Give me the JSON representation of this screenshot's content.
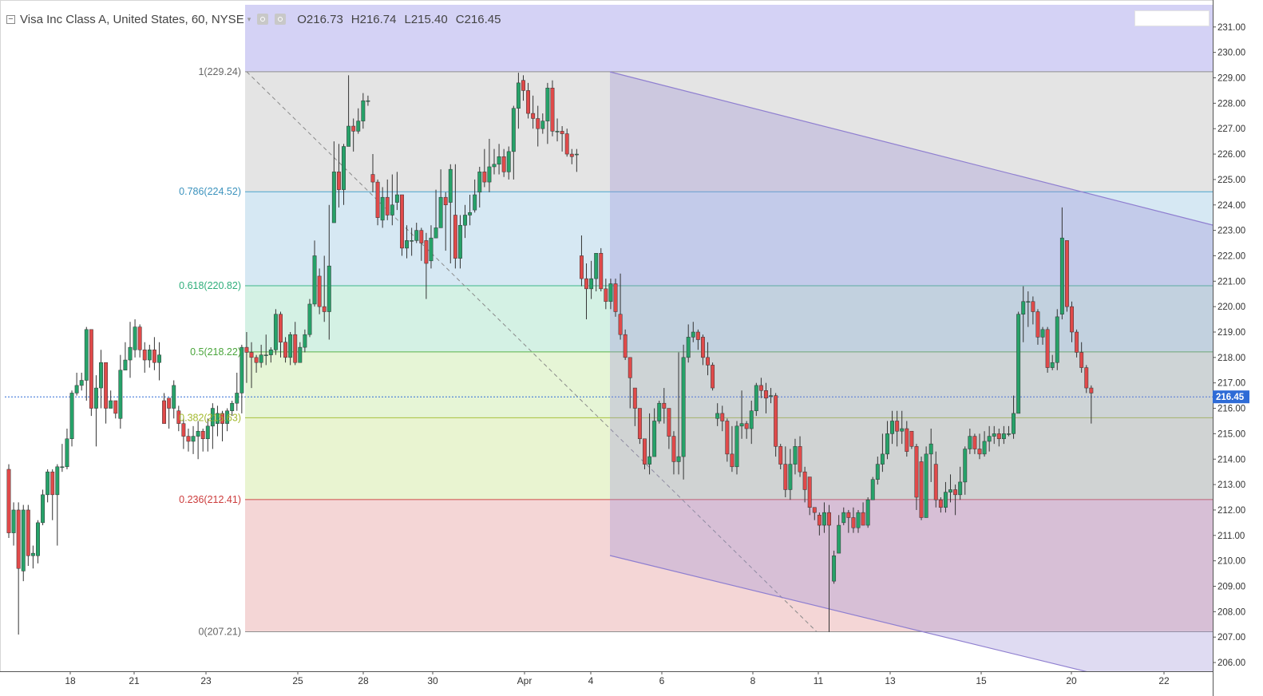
{
  "header": {
    "symbol_text": "Visa Inc Class A, United States, 60, NYSE",
    "open": "O216.73",
    "high": "H216.74",
    "low": "L215.40",
    "close": "C216.45"
  },
  "colors": {
    "up": "#26a269",
    "down": "#e04a4a",
    "channel_fill": "#9b8fd6",
    "top_band": "#d4d2f5"
  },
  "chart_data": {
    "type": "candlestick",
    "title": "Visa Inc Class A, United States, 60, NYSE",
    "ylim": [
      205.7,
      231.5
    ],
    "y_ticks": [
      "206.00",
      "207.00",
      "208.00",
      "209.00",
      "210.00",
      "211.00",
      "212.00",
      "213.00",
      "214.00",
      "215.00",
      "216.00",
      "217.00",
      "218.00",
      "219.00",
      "220.00",
      "221.00",
      "222.00",
      "223.00",
      "224.00",
      "225.00",
      "226.00",
      "227.00",
      "228.00",
      "229.00",
      "230.00",
      "231.00"
    ],
    "x_ticks": [
      "18",
      "21",
      "23",
      "25",
      "28",
      "30",
      "Apr",
      "4",
      "6",
      "8",
      "11",
      "13",
      "15",
      "20",
      "22"
    ],
    "last_price": "216.45",
    "fibonacci": [
      {
        "level": "1",
        "price": 229.24,
        "label": "1(229.24)"
      },
      {
        "level": "0.786",
        "price": 224.52,
        "label": "0.786(224.52)"
      },
      {
        "level": "0.618",
        "price": 220.82,
        "label": "0.618(220.82)"
      },
      {
        "level": "0.5",
        "price": 218.22,
        "label": "0.5(218.22)"
      },
      {
        "level": "0.382",
        "price": 215.63,
        "label": "0.382(215.63)"
      },
      {
        "level": "0.236",
        "price": 212.41,
        "label": "0.236(212.41)"
      },
      {
        "level": "0",
        "price": 207.21,
        "label": "0(207.21)"
      }
    ],
    "candles": [
      [
        213.6,
        211.1,
        213.8,
        210.9
      ],
      [
        211.1,
        212.0,
        212.3,
        210.6
      ],
      [
        212.0,
        209.7,
        212.3,
        207.1
      ],
      [
        209.6,
        212.0,
        212.2,
        209.2
      ],
      [
        212.0,
        210.2,
        212.2,
        209.8
      ],
      [
        210.2,
        210.3,
        210.6,
        209.7
      ],
      [
        210.2,
        211.5,
        211.6,
        209.9
      ],
      [
        211.5,
        212.6,
        212.8,
        211.4
      ],
      [
        212.6,
        213.5,
        213.6,
        212.3
      ],
      [
        213.5,
        212.6,
        213.6,
        211.6
      ],
      [
        212.6,
        213.7,
        213.8,
        210.6
      ],
      [
        213.7,
        213.7,
        214.6,
        213.5
      ],
      [
        213.7,
        214.8,
        215.2,
        213.6
      ],
      [
        214.8,
        216.6,
        216.7,
        214.5
      ],
      [
        216.6,
        216.9,
        217.4,
        216.5
      ],
      [
        216.9,
        217.1,
        217.4,
        216.7
      ],
      [
        217.1,
        219.1,
        219.2,
        216.3
      ],
      [
        219.1,
        216.0,
        216.4,
        215.7
      ],
      [
        216.0,
        216.8,
        217.3,
        214.5
      ],
      [
        216.8,
        217.8,
        218.3,
        216.0
      ],
      [
        217.8,
        216.0,
        216.2,
        215.4
      ],
      [
        216.0,
        216.3,
        216.7,
        216.0
      ],
      [
        216.3,
        215.8,
        216.0,
        215.6
      ],
      [
        215.6,
        217.5,
        218.1,
        215.2
      ],
      [
        217.5,
        217.9,
        218.6,
        217.5
      ],
      [
        217.9,
        218.4,
        219.4,
        217.2
      ],
      [
        218.3,
        219.2,
        219.5,
        218.0
      ],
      [
        219.2,
        218.3,
        219.3,
        218.0
      ],
      [
        218.3,
        217.9,
        218.6,
        217.4
      ],
      [
        217.9,
        218.3,
        218.5,
        217.6
      ],
      [
        218.3,
        217.8,
        218.8,
        217.5
      ],
      [
        217.8,
        218.1,
        218.6,
        217.1
      ],
      [
        216.3,
        215.4,
        216.6,
        215.4
      ],
      [
        216.4,
        216.0,
        216.4,
        215.2
      ],
      [
        216.0,
        216.9,
        217.1,
        215.6
      ],
      [
        215.9,
        215.4,
        216.1,
        215.1
      ],
      [
        215.4,
        214.9,
        215.6,
        214.4
      ],
      [
        214.9,
        214.7,
        215.2,
        214.3
      ],
      [
        214.7,
        214.9,
        215.3,
        214.2
      ],
      [
        214.9,
        215.1,
        215.5,
        214.0
      ],
      [
        215.1,
        214.8,
        215.2,
        214.3
      ],
      [
        214.8,
        215.3,
        215.6,
        214.3
      ],
      [
        215.3,
        216.0,
        216.2,
        214.4
      ],
      [
        215.4,
        215.8,
        216.1,
        214.9
      ],
      [
        215.8,
        215.4,
        215.9,
        214.7
      ],
      [
        215.4,
        215.9,
        216.0,
        215.1
      ],
      [
        215.9,
        216.2,
        216.3,
        215.7
      ],
      [
        216.2,
        216.6,
        217.4,
        215.9
      ],
      [
        216.6,
        218.4,
        218.5,
        215.8
      ],
      [
        218.4,
        218.2,
        219.0,
        217.0
      ],
      [
        218.2,
        218.0,
        218.6,
        216.8
      ],
      [
        218.0,
        217.8,
        218.1,
        217.4
      ],
      [
        217.8,
        218.1,
        218.5,
        217.6
      ],
      [
        218.1,
        218.1,
        218.9,
        217.7
      ],
      [
        218.1,
        218.3,
        218.4,
        217.8
      ],
      [
        218.3,
        219.7,
        219.9,
        218.1
      ],
      [
        219.7,
        218.6,
        219.8,
        218.0
      ],
      [
        218.6,
        218.0,
        218.8,
        217.8
      ],
      [
        218.0,
        218.9,
        219.0,
        217.7
      ],
      [
        218.9,
        217.8,
        219.4,
        217.7
      ],
      [
        217.8,
        218.4,
        218.6,
        217.8
      ],
      [
        218.4,
        218.9,
        219.1,
        218.2
      ],
      [
        218.9,
        220.1,
        220.3,
        218.8
      ],
      [
        220.1,
        222.0,
        222.6,
        220.0
      ],
      [
        221.2,
        220.0,
        221.5,
        219.7
      ],
      [
        220.0,
        219.8,
        222.0,
        219.4
      ],
      [
        219.8,
        221.6,
        224.0,
        218.7
      ],
      [
        223.3,
        225.3,
        226.5,
        223.3
      ],
      [
        225.3,
        224.6,
        226.4,
        223.9
      ],
      [
        224.6,
        226.3,
        226.4,
        224.0
      ],
      [
        226.3,
        227.1,
        229.1,
        226.7
      ],
      [
        227.1,
        226.9,
        227.4,
        226.1
      ],
      [
        226.9,
        227.3,
        227.8,
        226.8
      ],
      [
        227.3,
        228.1,
        228.4,
        227.0
      ],
      [
        228.1,
        228.1,
        228.3,
        227.9
      ],
      [
        225.2,
        224.9,
        226.0,
        224.5
      ],
      [
        224.9,
        223.5,
        225.0,
        223.2
      ],
      [
        223.4,
        224.3,
        224.7,
        223.1
      ],
      [
        224.3,
        223.6,
        225.0,
        223.4
      ],
      [
        223.6,
        224.0,
        225.2,
        223.2
      ],
      [
        224.1,
        224.4,
        225.3,
        223.8
      ],
      [
        224.4,
        222.3,
        224.4,
        222.0
      ],
      [
        222.3,
        222.6,
        223.2,
        221.9
      ],
      [
        222.6,
        222.6,
        223.1,
        222.0
      ],
      [
        222.6,
        223.0,
        223.3,
        222.5
      ],
      [
        223.0,
        222.5,
        223.1,
        221.8
      ],
      [
        222.6,
        221.7,
        222.9,
        220.3
      ],
      [
        221.8,
        222.7,
        223.2,
        221.5
      ],
      [
        222.7,
        223.1,
        224.6,
        222.9
      ],
      [
        223.1,
        224.3,
        225.4,
        223.1
      ],
      [
        224.3,
        224.0,
        224.5,
        222.2
      ],
      [
        224.1,
        225.4,
        225.6,
        221.7
      ],
      [
        223.6,
        221.9,
        225.6,
        221.5
      ],
      [
        221.9,
        223.2,
        223.6,
        221.5
      ],
      [
        223.2,
        223.6,
        224.0,
        222.7
      ],
      [
        223.6,
        223.7,
        224.4,
        223.2
      ],
      [
        223.8,
        224.4,
        225.0,
        223.7
      ],
      [
        224.5,
        225.3,
        225.5,
        223.9
      ],
      [
        225.3,
        224.9,
        226.2,
        224.7
      ],
      [
        224.9,
        225.5,
        226.6,
        224.5
      ],
      [
        225.5,
        225.6,
        226.2,
        225.2
      ],
      [
        225.6,
        225.9,
        226.4,
        225.2
      ],
      [
        225.9,
        225.3,
        226.2,
        225.1
      ],
      [
        225.3,
        226.1,
        226.3,
        225.0
      ],
      [
        226.1,
        227.8,
        227.9,
        225.0
      ],
      [
        227.8,
        228.8,
        229.2,
        227.0
      ],
      [
        228.9,
        228.5,
        229.1,
        228.1
      ],
      [
        228.5,
        227.6,
        228.8,
        227.4
      ],
      [
        227.6,
        227.4,
        228.3,
        227.0
      ],
      [
        227.4,
        227.0,
        227.9,
        226.3
      ],
      [
        227.0,
        227.3,
        227.6,
        226.8
      ],
      [
        227.3,
        228.6,
        228.8,
        226.4
      ],
      [
        228.6,
        226.9,
        228.9,
        226.7
      ],
      [
        226.9,
        226.9,
        227.4,
        226.5
      ],
      [
        226.9,
        226.8,
        227.1,
        226.1
      ],
      [
        226.8,
        226.0,
        227.0,
        225.9
      ],
      [
        226.0,
        225.9,
        226.2,
        225.6
      ],
      [
        226.0,
        226.0,
        226.2,
        225.3
      ],
      [
        222.0,
        221.1,
        222.8,
        220.8
      ],
      [
        221.1,
        220.7,
        221.7,
        219.5
      ],
      [
        220.7,
        221.1,
        221.8,
        220.3
      ],
      [
        221.1,
        222.1,
        222.1,
        220.6
      ],
      [
        222.1,
        220.7,
        222.3,
        220.6
      ],
      [
        220.7,
        220.2,
        221.1,
        219.9
      ],
      [
        220.2,
        220.9,
        221.1,
        219.9
      ],
      [
        220.9,
        219.8,
        221.1,
        219.6
      ],
      [
        219.7,
        218.9,
        221.3,
        218.7
      ],
      [
        218.9,
        218.0,
        219.1,
        217.9
      ],
      [
        218.0,
        217.2,
        218.0,
        216.0
      ],
      [
        216.8,
        216.0,
        216.7,
        215.3
      ],
      [
        216.0,
        214.8,
        216.0,
        214.6
      ],
      [
        214.8,
        213.8,
        214.8,
        213.6
      ],
      [
        213.8,
        214.1,
        215.8,
        213.4
      ],
      [
        214.1,
        215.5,
        216.0,
        214.3
      ],
      [
        215.5,
        216.2,
        216.3,
        215.4
      ],
      [
        216.2,
        216.0,
        216.8,
        215.4
      ],
      [
        216.0,
        214.9,
        215.1,
        214.4
      ],
      [
        214.9,
        213.9,
        215.1,
        213.4
      ],
      [
        213.9,
        214.1,
        218.2,
        213.4
      ],
      [
        214.1,
        218.0,
        218.5,
        213.2
      ],
      [
        218.0,
        218.8,
        219.3,
        217.8
      ],
      [
        218.8,
        219.0,
        219.4,
        218.6
      ],
      [
        219.0,
        218.7,
        219.1,
        218.3
      ],
      [
        218.8,
        218.0,
        218.9,
        217.7
      ],
      [
        218.0,
        217.7,
        218.6,
        217.3
      ],
      [
        217.7,
        216.8,
        217.8,
        216.7
      ],
      [
        215.6,
        215.8,
        216.2,
        215.3
      ],
      [
        215.8,
        215.5,
        216.1,
        215.1
      ],
      [
        215.5,
        214.2,
        215.6,
        213.9
      ],
      [
        214.2,
        213.7,
        215.3,
        213.5
      ],
      [
        213.7,
        215.3,
        215.5,
        213.4
      ],
      [
        215.3,
        215.4,
        216.7,
        214.8
      ],
      [
        215.4,
        215.2,
        215.5,
        214.8
      ],
      [
        215.2,
        215.9,
        216.3,
        214.6
      ],
      [
        215.9,
        216.9,
        217.0,
        215.7
      ],
      [
        216.9,
        216.7,
        217.2,
        216.4
      ],
      [
        216.7,
        216.4,
        217.0,
        215.8
      ],
      [
        216.5,
        216.5,
        216.8,
        216.2
      ],
      [
        216.5,
        214.5,
        216.6,
        214.1
      ],
      [
        214.5,
        213.8,
        214.6,
        213.6
      ],
      [
        213.8,
        212.8,
        214.5,
        212.5
      ],
      [
        212.8,
        213.8,
        214.4,
        212.4
      ],
      [
        213.8,
        214.5,
        214.8,
        213.4
      ],
      [
        214.5,
        213.5,
        214.9,
        213.3
      ],
      [
        213.5,
        212.8,
        213.7,
        212.3
      ],
      [
        213.3,
        212.1,
        213.2,
        211.8
      ],
      [
        212.1,
        211.9,
        212.0,
        211.6
      ],
      [
        211.8,
        211.4,
        211.9,
        211.0
      ],
      [
        211.4,
        211.9,
        212.3,
        211.1
      ],
      [
        211.9,
        211.4,
        212.2,
        207.2
      ],
      [
        209.2,
        210.2,
        210.4,
        209.1
      ],
      [
        210.3,
        211.4,
        211.8,
        210.7
      ],
      [
        211.5,
        211.9,
        212.1,
        211.4
      ],
      [
        211.9,
        211.7,
        212.0,
        211.1
      ],
      [
        211.7,
        211.3,
        212.1,
        211.1
      ],
      [
        211.3,
        211.9,
        212.0,
        211.1
      ],
      [
        211.9,
        211.4,
        212.3,
        211.4
      ],
      [
        211.4,
        212.4,
        212.5,
        211.3
      ],
      [
        212.4,
        213.2,
        213.3,
        212.4
      ],
      [
        213.2,
        213.8,
        214.1,
        213.0
      ],
      [
        213.8,
        214.2,
        215.0,
        213.5
      ],
      [
        214.2,
        215.0,
        215.5,
        214.0
      ],
      [
        215.0,
        215.5,
        215.9,
        214.6
      ],
      [
        215.5,
        215.1,
        215.9,
        214.5
      ],
      [
        215.1,
        215.2,
        215.9,
        214.6
      ],
      [
        215.2,
        214.3,
        215.5,
        214.1
      ],
      [
        215.1,
        214.5,
        215.0,
        214.4
      ],
      [
        214.5,
        212.5,
        214.6,
        212.0
      ],
      [
        213.9,
        211.7,
        214.1,
        211.6
      ],
      [
        211.7,
        214.2,
        214.5,
        213.0
      ],
      [
        214.2,
        214.6,
        215.2,
        213.1
      ],
      [
        213.8,
        212.4,
        214.3,
        212.1
      ],
      [
        212.4,
        212.1,
        212.5,
        211.9
      ],
      [
        212.1,
        212.7,
        213.1,
        211.9
      ],
      [
        212.7,
        212.8,
        213.4,
        212.3
      ],
      [
        212.8,
        212.6,
        213.0,
        211.8
      ],
      [
        212.6,
        213.1,
        213.7,
        212.4
      ],
      [
        213.1,
        214.4,
        214.5,
        212.6
      ],
      [
        214.4,
        214.9,
        215.2,
        214.2
      ],
      [
        214.9,
        214.4,
        215.0,
        214.2
      ],
      [
        214.4,
        214.2,
        215.0,
        214.0
      ],
      [
        214.2,
        214.7,
        215.1,
        214.1
      ],
      [
        214.7,
        214.9,
        215.3,
        214.3
      ],
      [
        214.9,
        215.0,
        215.3,
        214.6
      ],
      [
        215.0,
        214.8,
        215.2,
        214.5
      ],
      [
        214.8,
        215.0,
        215.3,
        214.6
      ],
      [
        215.0,
        215.0,
        215.3,
        214.9
      ],
      [
        215.0,
        215.8,
        216.5,
        214.8
      ],
      [
        215.8,
        219.7,
        219.8,
        217.8
      ],
      [
        219.7,
        220.2,
        220.8,
        218.6
      ],
      [
        220.2,
        220.2,
        220.6,
        219.2
      ],
      [
        220.2,
        219.8,
        220.4,
        219.3
      ],
      [
        219.8,
        218.8,
        219.9,
        218.5
      ],
      [
        218.8,
        219.1,
        219.2,
        218.5
      ],
      [
        219.1,
        217.6,
        219.2,
        217.4
      ],
      [
        217.6,
        217.8,
        218.1,
        217.5
      ],
      [
        217.8,
        219.6,
        219.9,
        217.5
      ],
      [
        219.7,
        222.7,
        223.9,
        219.5
      ],
      [
        222.6,
        220.0,
        222.6,
        219.8
      ],
      [
        220.0,
        219.0,
        220.2,
        218.6
      ],
      [
        219.0,
        218.2,
        219.1,
        218.0
      ],
      [
        218.2,
        217.6,
        218.6,
        217.4
      ],
      [
        217.6,
        216.8,
        217.7,
        216.6
      ],
      [
        216.8,
        216.6,
        216.9,
        215.4
      ]
    ]
  }
}
